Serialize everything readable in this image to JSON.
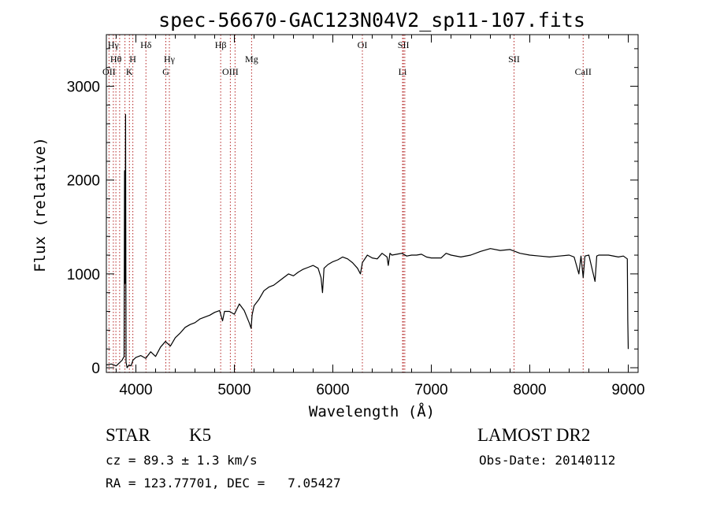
{
  "chart_data": {
    "type": "line",
    "title": "spec-56670-GAC123N04V2_sp11-107.fits",
    "xlabel": "Wavelength (Å)",
    "ylabel": "Flux (relative)",
    "xlim": [
      3700,
      9100
    ],
    "ylim": [
      -50,
      3550
    ],
    "x_ticks": [
      4000,
      5000,
      6000,
      7000,
      8000,
      9000
    ],
    "y_ticks": [
      0,
      1000,
      2000,
      3000
    ],
    "grid": false,
    "series": [
      {
        "x": [
          3700,
          3750,
          3800,
          3830,
          3860,
          3880,
          3885,
          3890,
          3895,
          3900,
          3910,
          3930,
          3950,
          3970,
          4000,
          4050,
          4100,
          4150,
          4200,
          4250,
          4300,
          4350,
          4400,
          4450,
          4500,
          4550,
          4600,
          4650,
          4700,
          4750,
          4800,
          4850,
          4880,
          4900,
          4950,
          5000,
          5050,
          5100,
          5150,
          5170,
          5180,
          5200,
          5250,
          5300,
          5350,
          5400,
          5450,
          5500,
          5550,
          5600,
          5650,
          5700,
          5750,
          5800,
          5850,
          5880,
          5895,
          5910,
          5950,
          6000,
          6050,
          6100,
          6150,
          6200,
          6250,
          6280,
          6300,
          6350,
          6400,
          6450,
          6500,
          6550,
          6563,
          6580,
          6600,
          6650,
          6700,
          6750,
          6800,
          6850,
          6900,
          6950,
          7000,
          7100,
          7150,
          7200,
          7300,
          7400,
          7500,
          7600,
          7700,
          7800,
          7900,
          8000,
          8100,
          8200,
          8300,
          8400,
          8450,
          8498,
          8520,
          8542,
          8560,
          8600,
          8662,
          8680,
          8700,
          8800,
          8900,
          8950,
          8990,
          8995,
          9000
        ],
        "y": [
          30,
          40,
          20,
          50,
          80,
          120,
          2100,
          900,
          2700,
          60,
          0,
          30,
          20,
          80,
          110,
          130,
          100,
          170,
          120,
          220,
          280,
          230,
          320,
          370,
          430,
          460,
          480,
          520,
          540,
          560,
          590,
          610,
          500,
          600,
          600,
          570,
          680,
          610,
          480,
          420,
          560,
          660,
          730,
          820,
          860,
          880,
          920,
          960,
          1000,
          980,
          1020,
          1050,
          1070,
          1090,
          1060,
          960,
          800,
          1060,
          1100,
          1130,
          1150,
          1180,
          1160,
          1120,
          1060,
          1000,
          1120,
          1200,
          1170,
          1160,
          1220,
          1180,
          1090,
          1220,
          1200,
          1210,
          1220,
          1190,
          1200,
          1200,
          1210,
          1180,
          1170,
          1170,
          1220,
          1200,
          1180,
          1200,
          1240,
          1270,
          1250,
          1260,
          1220,
          1200,
          1190,
          1180,
          1190,
          1200,
          1180,
          1000,
          1190,
          960,
          1190,
          1200,
          920,
          1190,
          1200,
          1200,
          1180,
          1190,
          1160,
          500,
          200
        ]
      }
    ],
    "spectral_lines": [
      {
        "label": "Hγ",
        "wavelength": 3771,
        "row": 0
      },
      {
        "label": "Hδ",
        "wavelength": 4102,
        "row": 0
      },
      {
        "label": "Hβ",
        "wavelength": 4861,
        "row": 0
      },
      {
        "label": "OI",
        "wavelength": 6300,
        "row": 0
      },
      {
        "label": "SII",
        "wavelength": 6717,
        "row": 0
      },
      {
        "label": "Hθ",
        "wavelength": 3797,
        "row": 1
      },
      {
        "label": "H",
        "wavelength": 3969,
        "row": 1
      },
      {
        "label": "Hγ",
        "wavelength": 4340,
        "row": 1
      },
      {
        "label": "Mg",
        "wavelength": 5175,
        "row": 1
      },
      {
        "label": "SII",
        "wavelength": 7840,
        "row": 1
      },
      {
        "label": "OII",
        "wavelength": 3727,
        "row": 2
      },
      {
        "label": "K",
        "wavelength": 3934,
        "row": 2
      },
      {
        "label": "G",
        "wavelength": 4304,
        "row": 2
      },
      {
        "label": "OIII",
        "wavelength": 4959,
        "row": 2
      },
      {
        "label": "Li",
        "wavelength": 6708,
        "row": 2
      },
      {
        "label": "CaII",
        "wavelength": 8542,
        "row": 2
      }
    ],
    "extra_lines": [
      3835,
      3889,
      5007,
      6731
    ]
  },
  "info": {
    "object_class": "STAR",
    "subclass": "K5",
    "survey": "LAMOST DR2",
    "cz": "cz = 89.3 ± 1.3 km/s",
    "obs_date": "Obs-Date: 20140112",
    "coords": "RA = 123.77701, DEC =   7.05427"
  },
  "colors": {
    "spectrum": "#000000",
    "line_markers": "#b22222",
    "axes": "#000000"
  }
}
